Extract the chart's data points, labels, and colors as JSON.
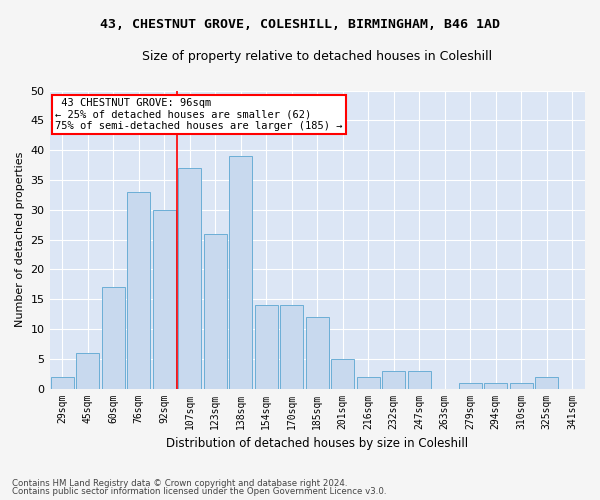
{
  "title1": "43, CHESTNUT GROVE, COLESHILL, BIRMINGHAM, B46 1AD",
  "title2": "Size of property relative to detached houses in Coleshill",
  "xlabel": "Distribution of detached houses by size in Coleshill",
  "ylabel": "Number of detached properties",
  "categories": [
    "29sqm",
    "45sqm",
    "60sqm",
    "76sqm",
    "92sqm",
    "107sqm",
    "123sqm",
    "138sqm",
    "154sqm",
    "170sqm",
    "185sqm",
    "201sqm",
    "216sqm",
    "232sqm",
    "247sqm",
    "263sqm",
    "279sqm",
    "294sqm",
    "310sqm",
    "325sqm",
    "341sqm"
  ],
  "values": [
    2,
    6,
    17,
    33,
    30,
    37,
    26,
    39,
    14,
    14,
    12,
    5,
    2,
    3,
    3,
    0,
    1,
    1,
    1,
    2,
    0
  ],
  "bar_color": "#c8d9ee",
  "bar_edge_color": "#6baed6",
  "vline_x_index": 4.5,
  "property_label": "43 CHESTNUT GROVE: 96sqm",
  "pct_smaller": "25% of detached houses are smaller (62)",
  "pct_larger": "75% of semi-detached houses are larger (185)",
  "ylim": [
    0,
    50
  ],
  "yticks": [
    0,
    5,
    10,
    15,
    20,
    25,
    30,
    35,
    40,
    45,
    50
  ],
  "background_color": "#dce6f5",
  "grid_color": "#ffffff",
  "fig_background": "#f5f5f5",
  "footer1": "Contains HM Land Registry data © Crown copyright and database right 2024.",
  "footer2": "Contains public sector information licensed under the Open Government Licence v3.0."
}
